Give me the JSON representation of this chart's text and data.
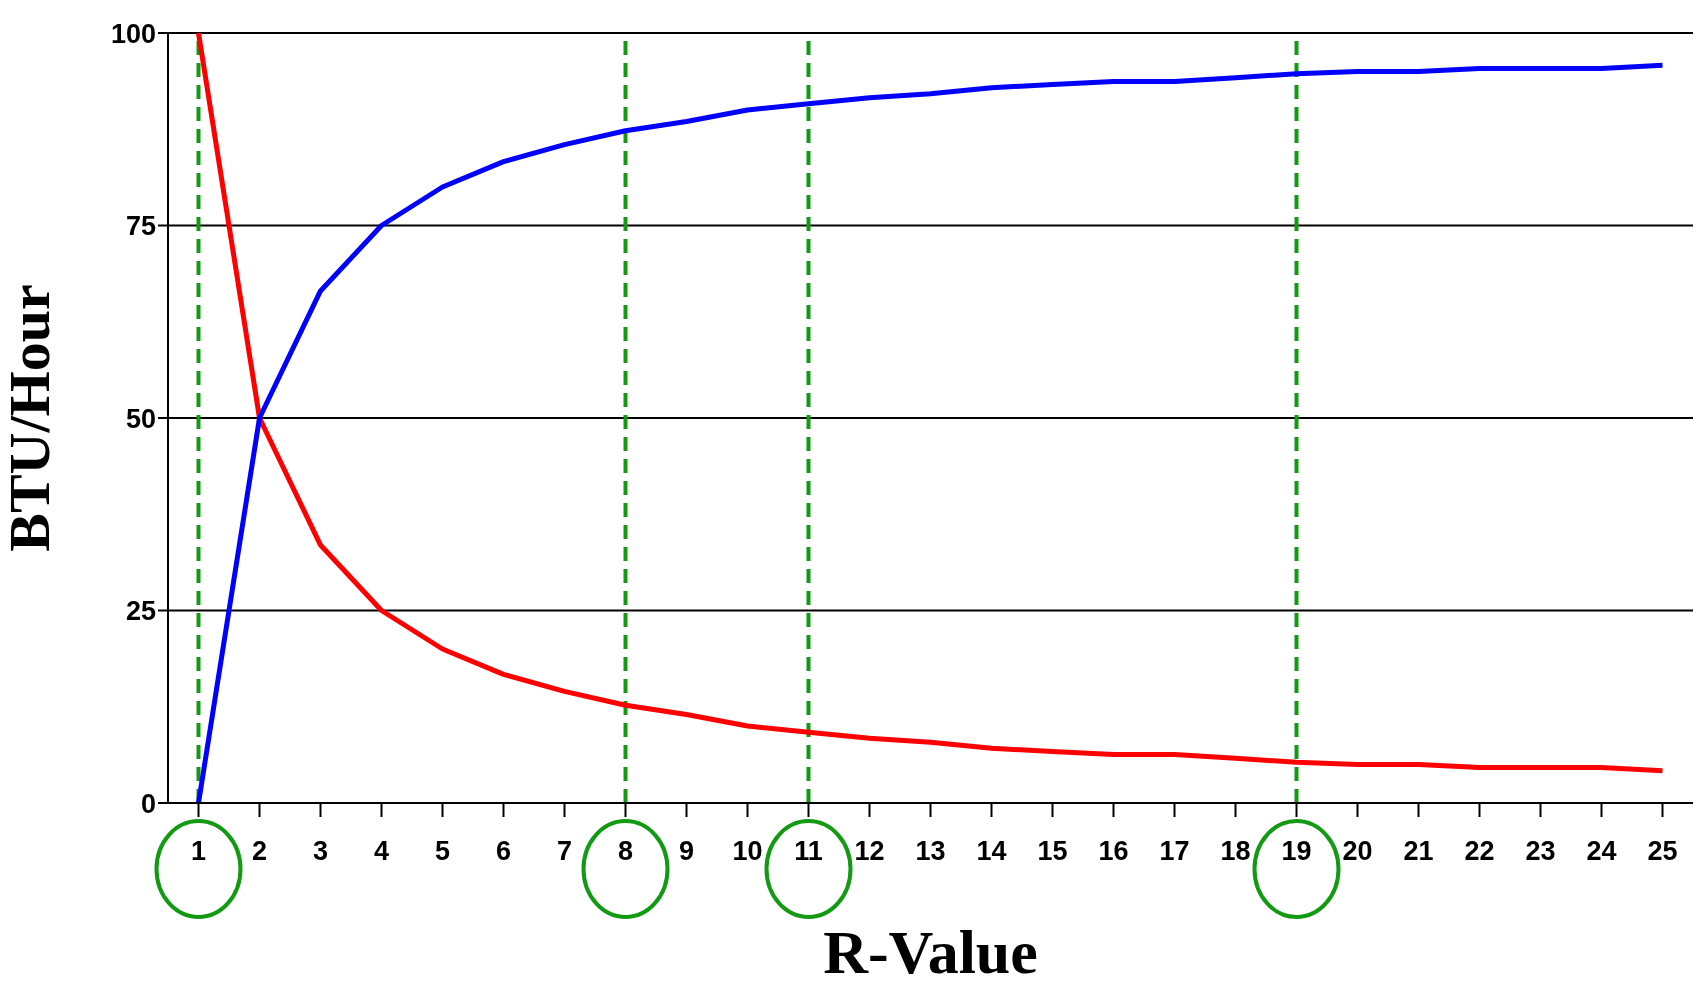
{
  "chart_data": {
    "type": "line",
    "xlabel": "R-Value",
    "ylabel": "BTU/Hour",
    "x": [
      1,
      2,
      3,
      4,
      5,
      6,
      7,
      8,
      9,
      10,
      11,
      12,
      13,
      14,
      15,
      16,
      17,
      18,
      19,
      20,
      21,
      22,
      23,
      24,
      25
    ],
    "xlim": [
      0.5,
      25.5
    ],
    "xticks": [
      1,
      2,
      3,
      4,
      5,
      6,
      7,
      8,
      9,
      10,
      11,
      12,
      13,
      14,
      15,
      16,
      17,
      18,
      19,
      20,
      21,
      22,
      23,
      24,
      25
    ],
    "ylim": [
      0,
      100
    ],
    "yticks": [
      0,
      25,
      50,
      75,
      100
    ],
    "grid": "y",
    "marker": "none",
    "line_style": "solid",
    "series": [
      {
        "color": "#ff0000",
        "values": [
          100,
          50,
          33.5,
          25,
          20,
          16.7,
          14.5,
          12.7,
          11.5,
          10,
          9.2,
          8.4,
          7.9,
          7.1,
          6.7,
          6.3,
          6.3,
          5.8,
          5.3,
          5,
          5,
          4.6,
          4.6,
          4.6,
          4.2
        ]
      },
      {
        "color": "#0000ff",
        "values": [
          0,
          50,
          66.5,
          75,
          80,
          83.3,
          85.5,
          87.3,
          88.5,
          90,
          90.8,
          91.6,
          92.1,
          92.9,
          93.3,
          93.7,
          93.7,
          94.2,
          94.7,
          95,
          95,
          95.4,
          95.4,
          95.4,
          95.8
        ]
      }
    ],
    "ref_lines": [
      {
        "axis": "x",
        "value": 1,
        "color": "#139a13",
        "line_style": "dashed"
      },
      {
        "axis": "x",
        "value": 8,
        "color": "#139a13",
        "line_style": "dashed"
      },
      {
        "axis": "x",
        "value": 11,
        "color": "#139a13",
        "line_style": "dashed"
      },
      {
        "axis": "x",
        "value": 19,
        "color": "#139a13",
        "line_style": "dashed"
      }
    ]
  }
}
